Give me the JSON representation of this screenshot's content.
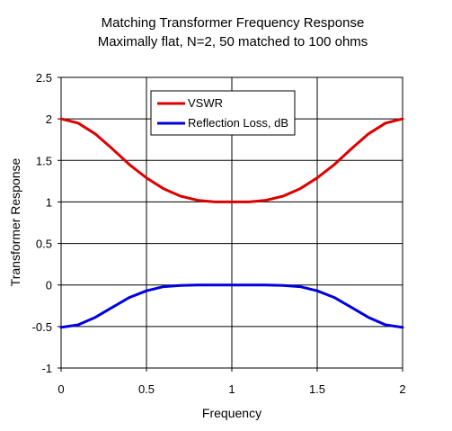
{
  "chart_data": {
    "type": "line",
    "title": "Matching Transformer Frequency Response",
    "subtitle": "Maximally flat, N=2, 50 matched to 100 ohms",
    "xlabel": "Frequency",
    "ylabel": "Transformer Response",
    "xlim": [
      0,
      2
    ],
    "ylim": [
      -1,
      2.5
    ],
    "xticks": [
      "0",
      "0.5",
      "1",
      "1.5",
      "2"
    ],
    "yticks": [
      "2.5",
      "2",
      "1.5",
      "1",
      "0.5",
      "0",
      "-0.5",
      "-1"
    ],
    "grid": true,
    "legend_position": "top-center",
    "x": [
      0,
      0.1,
      0.2,
      0.3,
      0.4,
      0.5,
      0.6,
      0.7,
      0.8,
      0.9,
      1.0,
      1.1,
      1.2,
      1.3,
      1.4,
      1.5,
      1.6,
      1.7,
      1.8,
      1.9,
      2.0
    ],
    "series": [
      {
        "name": "VSWR",
        "color": "#dd0000",
        "values": [
          2.0,
          1.95,
          1.82,
          1.64,
          1.45,
          1.29,
          1.16,
          1.07,
          1.02,
          1.0,
          1.0,
          1.0,
          1.02,
          1.07,
          1.16,
          1.29,
          1.45,
          1.64,
          1.82,
          1.95,
          2.0
        ]
      },
      {
        "name": "Reflection Loss, dB",
        "color": "#0000dd",
        "values": [
          -0.51,
          -0.48,
          -0.39,
          -0.27,
          -0.15,
          -0.07,
          -0.02,
          -0.005,
          0.0,
          0.0,
          0.0,
          0.0,
          0.0,
          -0.005,
          -0.02,
          -0.07,
          -0.15,
          -0.27,
          -0.39,
          -0.48,
          -0.51
        ]
      }
    ]
  }
}
